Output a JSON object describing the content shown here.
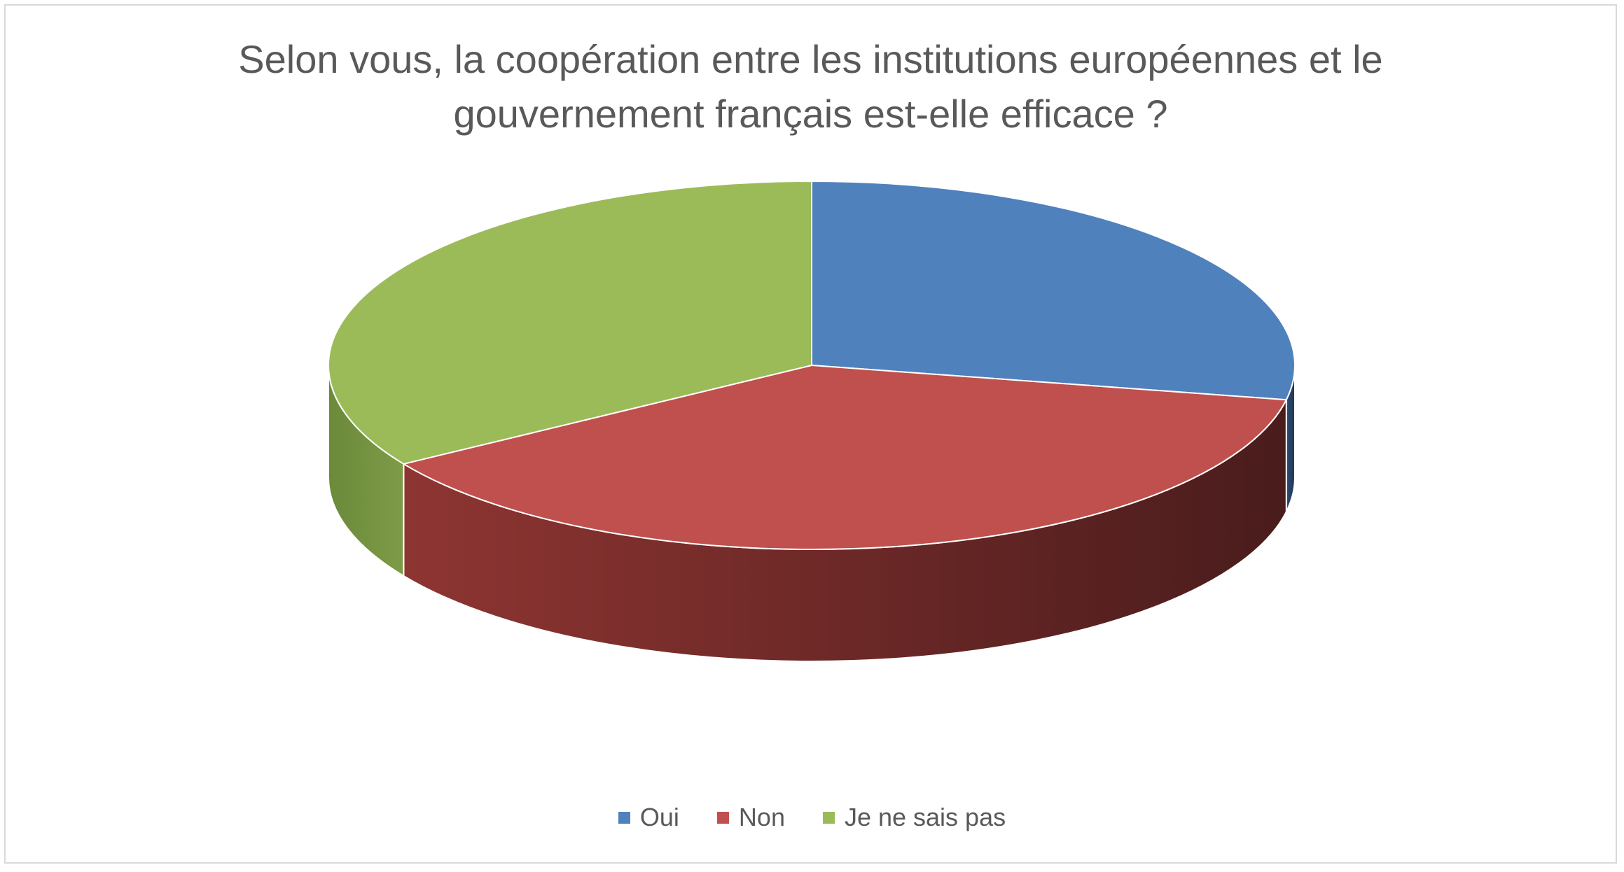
{
  "chart_data": {
    "type": "pie",
    "title": "Selon vous, la coopération entre les institutions européennes et le gouvernement français est-elle efficace ?",
    "title_lines": [
      "Selon vous, la coopération entre les institutions européennes et le",
      "gouvernement français est-elle efficace ?"
    ],
    "three_d": true,
    "legend_position": "bottom",
    "categories": [
      "Oui",
      "Non",
      "Je ne sais pas"
    ],
    "values": [
      28,
      38,
      34
    ],
    "colors": {
      "Oui": "#4f81bd",
      "Non": "#c0504d",
      "Je ne sais pas": "#9bbb59"
    },
    "side_colors": {
      "Oui": [
        "#2c4d75",
        "#1f3653"
      ],
      "Non": [
        "#8e3532",
        "#4a1c1c"
      ],
      "Je ne sais pas": [
        "#6b8a3a",
        "#7d9b47"
      ]
    }
  }
}
